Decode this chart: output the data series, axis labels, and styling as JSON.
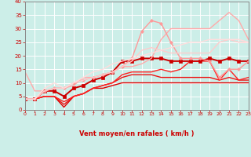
{
  "xlabel": "Vent moyen/en rafales ( km/h )",
  "xlim": [
    0,
    23
  ],
  "ylim": [
    0,
    40
  ],
  "yticks": [
    0,
    5,
    10,
    15,
    20,
    25,
    30,
    35,
    40
  ],
  "xticks": [
    0,
    1,
    2,
    3,
    4,
    5,
    6,
    7,
    8,
    9,
    10,
    11,
    12,
    13,
    14,
    15,
    16,
    17,
    18,
    19,
    20,
    21,
    22,
    23
  ],
  "bg_color": "#cceee8",
  "grid_color": "#ffffff",
  "lines": [
    {
      "x": [
        0,
        1,
        2,
        3,
        4,
        5,
        6,
        7,
        8,
        9,
        10,
        11,
        12,
        13,
        14,
        15,
        16,
        17,
        18,
        19,
        20,
        21,
        22,
        23
      ],
      "y": [
        4,
        4,
        5,
        5,
        1,
        5,
        6,
        8,
        8,
        9,
        10,
        10,
        10,
        10,
        10,
        10,
        10,
        10,
        10,
        10,
        10,
        10,
        10,
        10
      ],
      "color": "#dd0000",
      "lw": 1.0,
      "marker": null,
      "ms": 0
    },
    {
      "x": [
        0,
        1,
        2,
        3,
        4,
        5,
        6,
        7,
        8,
        9,
        10,
        11,
        12,
        13,
        14,
        15,
        16,
        17,
        18,
        19,
        20,
        21,
        22,
        23
      ],
      "y": [
        4,
        4,
        5,
        5,
        2,
        5,
        6,
        8,
        9,
        10,
        12,
        13,
        13,
        13,
        12,
        12,
        12,
        12,
        12,
        12,
        11,
        12,
        11,
        11
      ],
      "color": "#ee1111",
      "lw": 1.0,
      "marker": null,
      "ms": 0
    },
    {
      "x": [
        0,
        1,
        2,
        3,
        4,
        5,
        6,
        7,
        8,
        9,
        10,
        11,
        12,
        13,
        14,
        15,
        16,
        17,
        18,
        19,
        20,
        21,
        22,
        23
      ],
      "y": [
        4,
        4,
        5,
        5,
        3,
        5,
        6,
        8,
        9,
        10,
        13,
        14,
        14,
        14,
        15,
        14,
        15,
        18,
        18,
        18,
        11,
        15,
        11,
        12
      ],
      "color": "#ff2222",
      "lw": 1.0,
      "marker": null,
      "ms": 0
    },
    {
      "x": [
        0,
        1,
        2,
        3,
        4,
        5,
        6,
        7,
        8,
        9,
        10,
        11,
        12,
        13,
        14,
        15,
        16,
        17,
        18,
        19,
        20,
        21,
        22,
        23
      ],
      "y": [
        4,
        4,
        7,
        7,
        5,
        8,
        9,
        11,
        12,
        14,
        18,
        18,
        19,
        19,
        19,
        18,
        18,
        18,
        18,
        19,
        18,
        19,
        18,
        18
      ],
      "color": "#cc0000",
      "lw": 1.4,
      "marker": "s",
      "ms": 2.5
    },
    {
      "x": [
        0,
        1,
        2,
        3,
        4,
        5,
        6,
        7,
        8,
        9,
        10,
        11,
        12,
        13,
        14,
        15,
        16,
        17,
        18,
        19,
        20,
        21,
        22,
        23
      ],
      "y": [
        14,
        7,
        7,
        8,
        8,
        9,
        12,
        12,
        13,
        14,
        16,
        16,
        17,
        19,
        26,
        30,
        30,
        30,
        30,
        30,
        33,
        36,
        33,
        26
      ],
      "color": "#ffaaaa",
      "lw": 1.0,
      "marker": null,
      "ms": 0
    },
    {
      "x": [
        0,
        1,
        2,
        3,
        4,
        5,
        6,
        7,
        8,
        9,
        10,
        11,
        12,
        13,
        14,
        15,
        16,
        17,
        18,
        19,
        20,
        21,
        22,
        23
      ],
      "y": [
        4,
        4,
        7,
        8,
        8,
        10,
        11,
        12,
        13,
        14,
        16,
        19,
        29,
        33,
        32,
        25,
        19,
        19,
        19,
        18,
        12,
        15,
        15,
        18
      ],
      "color": "#ff9999",
      "lw": 1.0,
      "marker": "D",
      "ms": 2.0
    },
    {
      "x": [
        0,
        1,
        2,
        3,
        4,
        5,
        6,
        7,
        8,
        9,
        10,
        11,
        12,
        13,
        14,
        15,
        16,
        17,
        18,
        19,
        20,
        21,
        22,
        23
      ],
      "y": [
        4,
        4,
        7,
        8,
        8,
        10,
        11,
        12,
        13,
        14,
        16,
        18,
        22,
        23,
        22,
        21,
        21,
        21,
        21,
        21,
        25,
        26,
        25,
        25
      ],
      "color": "#ffcccc",
      "lw": 1.0,
      "marker": null,
      "ms": 0
    },
    {
      "x": [
        0,
        1,
        2,
        3,
        4,
        5,
        6,
        7,
        8,
        9,
        10,
        11,
        12,
        13,
        14,
        15,
        16,
        17,
        18,
        19,
        20,
        21,
        22,
        23
      ],
      "y": [
        4,
        4,
        8,
        10,
        8,
        10,
        12,
        14,
        15,
        17,
        18,
        19,
        20,
        21,
        22,
        23,
        24,
        25,
        25,
        26,
        26,
        26,
        26,
        25
      ],
      "color": "#ffdddd",
      "lw": 1.0,
      "marker": null,
      "ms": 0
    }
  ],
  "arrow_angles": [
    -45,
    -70,
    -90,
    -90,
    -90,
    -90,
    -160,
    -45,
    -60,
    -90,
    -60,
    -90,
    -60,
    -90,
    -60,
    -90,
    -60,
    -90,
    -60,
    -90,
    -60,
    -90,
    -60,
    -45
  ],
  "arrow_color": "#cc0000",
  "xlabel_color": "#cc0000",
  "tick_color": "#cc0000"
}
